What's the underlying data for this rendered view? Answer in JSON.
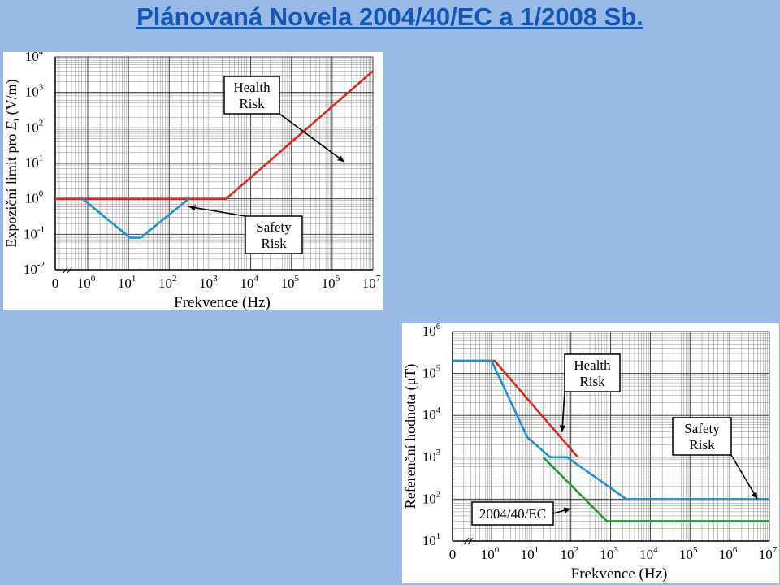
{
  "title": "Plánovaná Novela 2004/40/EC a 1/2008 Sb.",
  "chart_data": [
    {
      "type": "line",
      "id": "electric-field-limit",
      "xscale": "log",
      "yscale": "log",
      "x_zero_marker": "0",
      "xlim": [
        1,
        10000000
      ],
      "ylim": [
        0.01,
        10000
      ],
      "xticks": [
        {
          "v": 1,
          "base": "10",
          "exp": "0"
        },
        {
          "v": 10,
          "base": "10",
          "exp": "1"
        },
        {
          "v": 100,
          "base": "10",
          "exp": "2"
        },
        {
          "v": 1000,
          "base": "10",
          "exp": "3"
        },
        {
          "v": 10000,
          "base": "10",
          "exp": "4"
        },
        {
          "v": 100000,
          "base": "10",
          "exp": "5"
        },
        {
          "v": 1000000,
          "base": "10",
          "exp": "6"
        },
        {
          "v": 10000000,
          "base": "10",
          "exp": "7"
        }
      ],
      "yticks": [
        {
          "v": 0.01,
          "base": "10",
          "exp": "-2"
        },
        {
          "v": 0.1,
          "base": "10",
          "exp": "-1"
        },
        {
          "v": 1,
          "base": "10",
          "exp": "0"
        },
        {
          "v": 10,
          "base": "10",
          "exp": "1"
        },
        {
          "v": 100,
          "base": "10",
          "exp": "2"
        },
        {
          "v": 1000,
          "base": "10",
          "exp": "3"
        },
        {
          "v": 10000,
          "base": "10",
          "exp": "4"
        }
      ],
      "xlabel": "Frekvence (Hz)",
      "ylabel_pre": "Expoziční limit pro ",
      "ylabel_sym": "E",
      "ylabel_sub": "i",
      "ylabel_post": " (V/m)",
      "grid": true,
      "series": [
        {
          "color": "#d42a20",
          "x": [
            0,
            2500,
            10000000
          ],
          "y": [
            1,
            1,
            4000
          ]
        },
        {
          "color": "#1e8fd2",
          "x": [
            0.75,
            11,
            20,
            300
          ],
          "y": [
            1,
            0.08,
            0.08,
            1
          ]
        }
      ],
      "annotations": [
        {
          "lines": [
            "Health",
            "Risk"
          ],
          "target": [
            2000000,
            11
          ]
        },
        {
          "lines": [
            "Safety",
            "Risk"
          ],
          "target": [
            300,
            0.6
          ]
        }
      ]
    },
    {
      "type": "line",
      "id": "magnetic-reference",
      "xscale": "log",
      "yscale": "log",
      "x_zero_marker": "0",
      "xlim": [
        1,
        10000000
      ],
      "ylim": [
        10,
        1000000
      ],
      "xticks": [
        {
          "v": 1,
          "base": "10",
          "exp": "0"
        },
        {
          "v": 10,
          "base": "10",
          "exp": "1"
        },
        {
          "v": 100,
          "base": "10",
          "exp": "2"
        },
        {
          "v": 1000,
          "base": "10",
          "exp": "3"
        },
        {
          "v": 10000,
          "base": "10",
          "exp": "4"
        },
        {
          "v": 100000,
          "base": "10",
          "exp": "5"
        },
        {
          "v": 1000000,
          "base": "10",
          "exp": "6"
        },
        {
          "v": 10000000,
          "base": "10",
          "exp": "7"
        }
      ],
      "yticks": [
        {
          "v": 10,
          "base": "10",
          "exp": "1"
        },
        {
          "v": 100,
          "base": "10",
          "exp": "2"
        },
        {
          "v": 1000,
          "base": "10",
          "exp": "3"
        },
        {
          "v": 10000,
          "base": "10",
          "exp": "4"
        },
        {
          "v": 100000,
          "base": "10",
          "exp": "5"
        },
        {
          "v": 1000000,
          "base": "10",
          "exp": "6"
        }
      ],
      "xlabel": "Frekvence (Hz)",
      "ylabel_pre": "Referenční hodnota (",
      "ylabel_sym": "μT",
      "ylabel_sub": "",
      "ylabel_post": ")",
      "grid": true,
      "series": [
        {
          "color": "#d42a20",
          "x": [
            0,
            1.2,
            150
          ],
          "y": [
            200000,
            200000,
            1000
          ]
        },
        {
          "color": "#1e8fd2",
          "x": [
            0,
            1,
            8,
            30,
            80,
            2500,
            10000000
          ],
          "y": [
            200000,
            200000,
            3000,
            1000,
            1000,
            100,
            100
          ]
        },
        {
          "color": "#1f9a3c",
          "x": [
            20,
            800,
            10000000
          ],
          "y": [
            1000,
            30,
            30
          ]
        }
      ],
      "annotations": [
        {
          "lines": [
            "Health",
            "Risk"
          ],
          "target": [
            60,
            4000
          ]
        },
        {
          "lines": [
            "Safety",
            "Risk"
          ],
          "target": [
            5000000,
            100
          ]
        },
        {
          "lines": [
            "2004/40/EC"
          ],
          "target": [
            100,
            60
          ]
        }
      ]
    }
  ]
}
